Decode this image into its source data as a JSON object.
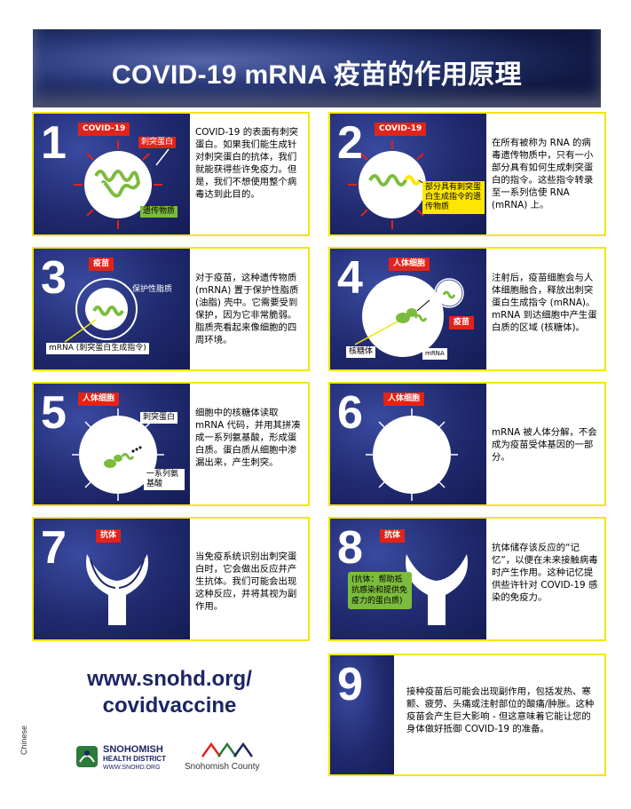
{
  "title": "COVID-19 mRNA 疫苗的作用原理",
  "cards": [
    {
      "num": "1",
      "tag": "COVID-19",
      "labels": [
        "刺突蛋白",
        "遗传物质"
      ],
      "text": "COVID-19 的表面有刺突蛋白。如果我们能生成针对刺突蛋白的抗体，我们就能获得些许免疫力。但是，我们不想使用整个病毒达到此目的。"
    },
    {
      "num": "2",
      "tag": "COVID-19",
      "labels": [
        "部分具有刺突蛋白生成指令的遗传物质"
      ],
      "text": "在所有被称为 RNA 的病毒遗传物质中，只有一小部分具有如何生成刺突蛋白的指令。这些指令转录至一系列信使 RNA (mRNA) 上。"
    },
    {
      "num": "3",
      "tag": "疫苗",
      "labels": [
        "保护性脂质",
        "mRNA (刺突蛋白生成指令)"
      ],
      "text": "对于疫苗，这种遗传物质 (mRNA) 置于保护性脂质 (油脂) 壳中。它需要受到保护，因为它非常脆弱。脂质壳看起来像细胞的四周环境。"
    },
    {
      "num": "4",
      "tag": "人体细胞",
      "labels": [
        "疫苗",
        "核糖体",
        "mRNA"
      ],
      "text": "注射后，疫苗细胞会与人体细胞融合，释放出刺突蛋白生成指令 (mRNA)。mRNA 到达细胞中产生蛋白质的区域 (核糖体)。"
    },
    {
      "num": "5",
      "tag": "人体细胞",
      "labels": [
        "刺突蛋白",
        "一系列氨基酸"
      ],
      "text": "细胞中的核糖体读取 mRNA 代码，并用其拼凑成一系列氨基酸，形成蛋白质。蛋白质从细胞中渗漏出来，产生刺突。"
    },
    {
      "num": "6",
      "tag": "人体细胞",
      "labels": [],
      "text": "mRNA 被人体分解，不会成为疫苗受体基因的一部分。"
    },
    {
      "num": "7",
      "tag": "抗体",
      "labels": [],
      "text": "当免疫系统识别出刺突蛋白时，它会做出反应并产生抗体。我们可能会出现这种反应，并将其视为副作用。"
    },
    {
      "num": "8",
      "tag": "抗体",
      "labels": [
        "(抗体：帮助抵抗感染和提供免疫力的蛋白质)"
      ],
      "text": "抗体储存该反应的“记忆”，以便在未来接触病毒时产生作用。这种记忆提供些许针对 COVID-19 感染的免疫力。"
    },
    {
      "num": "9",
      "tag": "",
      "labels": [],
      "text": "接种疫苗后可能会出现副作用，包括发热、寒颤、疲劳、头痛或注射部位的酸痛/肿胀。这种疫苗会产生巨大影响 - 但这意味着它能让您的身体做好抵御 COVID-19 的准备。"
    }
  ],
  "url_line1": "www.snohd.org/",
  "url_line2": "covidvaccine",
  "language": "Chinese",
  "logo_shd": {
    "line1": "SNOHOMISH",
    "line2": "HEALTH DISTRICT",
    "line3": "WWW.SNOHD.ORG"
  },
  "logo_sc": "Snohomish County",
  "colors": {
    "navy": "#1d2565",
    "yellow": "#f2e600",
    "red": "#e2231a",
    "green": "#7cbc3d"
  }
}
